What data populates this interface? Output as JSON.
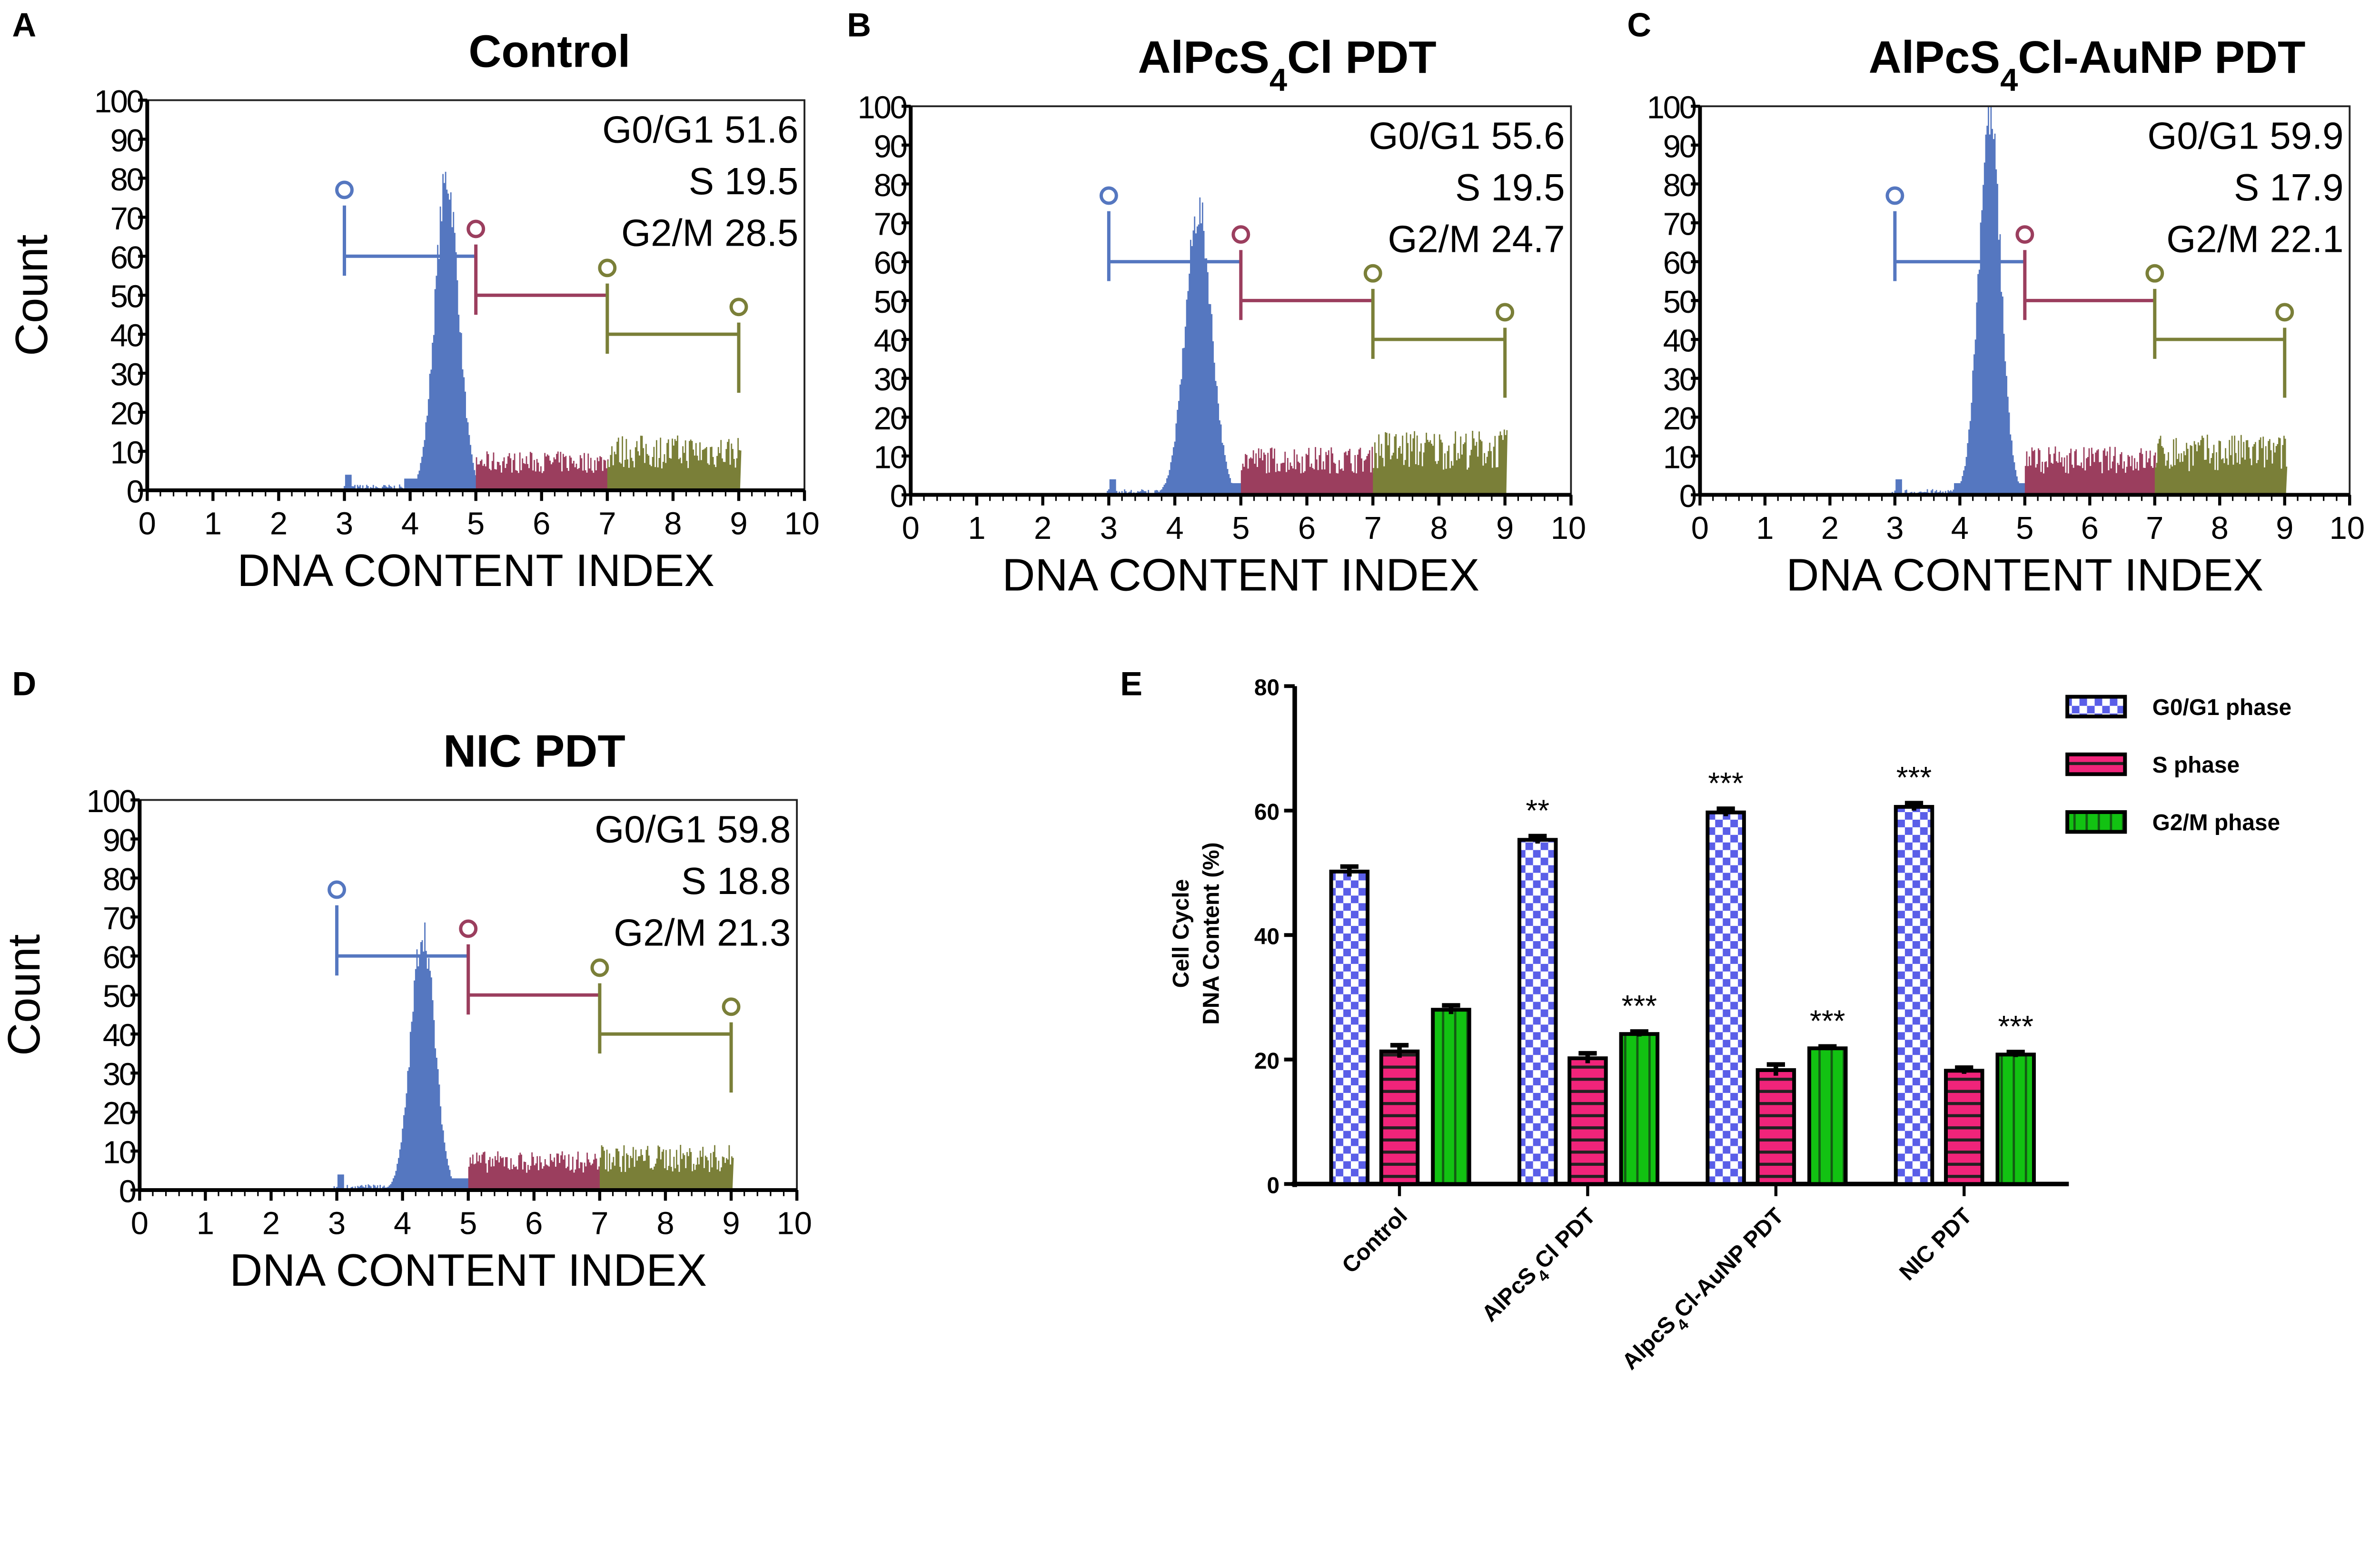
{
  "chart_data": [
    {
      "panel": "A",
      "type": "histogram",
      "title": {
        "pre": "Control",
        "sub": "",
        "post": ""
      },
      "xlabel": "DNA CONTENT INDEX",
      "ylabel": "Count",
      "xlim": [
        0,
        10
      ],
      "ylim": [
        0,
        100
      ],
      "xticks": [
        "0",
        "1",
        "2",
        "3",
        "4",
        "5",
        "6",
        "7",
        "8",
        "9",
        "10"
      ],
      "yticks": [
        "0",
        "10",
        "20",
        "30",
        "40",
        "50",
        "60",
        "70",
        "80",
        "90",
        "100"
      ],
      "stats": [
        {
          "label": "G0/G1 51.6"
        },
        {
          "label": "S 19.5"
        },
        {
          "label": "G2/M 28.5"
        }
      ],
      "peak": {
        "center": 4.55,
        "height": 82,
        "sd": 0.18
      },
      "s_level": 8,
      "g2m_level": 11,
      "gates": [
        {
          "from": 3,
          "to": 5,
          "y": 60,
          "marker": 77
        },
        {
          "from": 5,
          "to": 7,
          "y": 50,
          "marker": 67
        },
        {
          "from": 7,
          "to": 9,
          "y": 40,
          "marker": 57,
          "end_marker": 47
        }
      ]
    },
    {
      "panel": "B",
      "type": "histogram",
      "title": {
        "pre": "AlPcS",
        "sub": "4",
        "post": "Cl PDT"
      },
      "xlabel": "DNA CONTENT INDEX",
      "ylabel": "",
      "xlim": [
        0,
        10
      ],
      "ylim": [
        0,
        100
      ],
      "xticks": [
        "0",
        "1",
        "2",
        "3",
        "4",
        "5",
        "6",
        "7",
        "8",
        "9",
        "10"
      ],
      "yticks": [
        "0",
        "10",
        "20",
        "30",
        "40",
        "50",
        "60",
        "70",
        "80",
        "90",
        "100"
      ],
      "stats": [
        {
          "label": "G0/G1 55.6"
        },
        {
          "label": "S 19.5"
        },
        {
          "label": "G2/M 24.7"
        }
      ],
      "peak": {
        "center": 4.35,
        "height": 75,
        "sd": 0.2
      },
      "s_level": 10,
      "g2m_level": 13,
      "gates": [
        {
          "from": 3,
          "to": 5,
          "y": 60,
          "marker": 77
        },
        {
          "from": 5,
          "to": 7,
          "y": 50,
          "marker": 67
        },
        {
          "from": 7,
          "to": 9,
          "y": 40,
          "marker": 57,
          "end_marker": 47
        }
      ]
    },
    {
      "panel": "C",
      "type": "histogram",
      "title": {
        "pre": "AlPcS",
        "sub": "4",
        "post": "Cl-AuNP PDT"
      },
      "xlabel": "DNA CONTENT INDEX",
      "ylabel": "",
      "xlim": [
        0,
        10
      ],
      "ylim": [
        0,
        100
      ],
      "xticks": [
        "0",
        "1",
        "2",
        "3",
        "4",
        "5",
        "6",
        "7",
        "8",
        "9",
        "10"
      ],
      "yticks": [
        "0",
        "10",
        "20",
        "30",
        "40",
        "50",
        "60",
        "70",
        "80",
        "90",
        "100"
      ],
      "stats": [
        {
          "label": "G0/G1 59.9"
        },
        {
          "label": "S 17.9"
        },
        {
          "label": "G2/M 22.1"
        }
      ],
      "peak": {
        "center": 4.45,
        "height": 100,
        "sd": 0.17
      },
      "s_level": 10,
      "g2m_level": 12,
      "gates": [
        {
          "from": 3,
          "to": 5,
          "y": 60,
          "marker": 77
        },
        {
          "from": 5,
          "to": 7,
          "y": 50,
          "marker": 67
        },
        {
          "from": 7,
          "to": 9,
          "y": 40,
          "marker": 57,
          "end_marker": 47
        }
      ]
    },
    {
      "panel": "D",
      "type": "histogram",
      "title": {
        "pre": "NIC PDT",
        "sub": "",
        "post": ""
      },
      "xlabel": "DNA CONTENT INDEX",
      "ylabel": "Count",
      "xlim": [
        0,
        10
      ],
      "ylim": [
        0,
        100
      ],
      "xticks": [
        "0",
        "1",
        "2",
        "3",
        "4",
        "5",
        "6",
        "7",
        "8",
        "9",
        "10"
      ],
      "yticks": [
        "0",
        "10",
        "20",
        "30",
        "40",
        "50",
        "60",
        "70",
        "80",
        "90",
        "100"
      ],
      "stats": [
        {
          "label": "G0/G1 59.8"
        },
        {
          "label": "S 18.8"
        },
        {
          "label": "G2/M 21.3"
        }
      ],
      "peak": {
        "center": 4.3,
        "height": 68,
        "sd": 0.18
      },
      "s_level": 8,
      "g2m_level": 9,
      "gates": [
        {
          "from": 3,
          "to": 5,
          "y": 60,
          "marker": 77
        },
        {
          "from": 5,
          "to": 7,
          "y": 50,
          "marker": 67
        },
        {
          "from": 7,
          "to": 9,
          "y": 40,
          "marker": 57,
          "end_marker": 47
        }
      ]
    },
    {
      "panel": "E",
      "type": "bar",
      "ylabel_line1": "Cell Cycle",
      "ylabel_line2": "DNA Content (%)",
      "ylim": [
        0,
        80
      ],
      "yticks": [
        "0",
        "20",
        "40",
        "60",
        "80"
      ],
      "categories": [
        {
          "pre": "Control",
          "sub": "",
          "post": ""
        },
        {
          "pre": "AlPcS",
          "sub": "4",
          "post": "Cl PDT"
        },
        {
          "pre": "AlpcS",
          "sub": "4",
          "post": "Cl-AuNP PDT"
        },
        {
          "pre": "NIC PDT",
          "sub": "",
          "post": ""
        }
      ],
      "series": [
        {
          "name": "G0/G1 phase",
          "values": [
            50.2,
            55.3,
            59.7,
            60.6
          ],
          "errors": [
            0.8,
            0.6,
            0.6,
            0.6
          ],
          "sig": [
            "",
            "**",
            "***",
            "***"
          ]
        },
        {
          "name": "S phase",
          "values": [
            21.3,
            20.2,
            18.3,
            18.2
          ],
          "errors": [
            1.0,
            0.8,
            0.9,
            0.5
          ],
          "sig": [
            "",
            "",
            "",
            ""
          ]
        },
        {
          "name": "G2/M phase",
          "values": [
            28.0,
            24.1,
            21.8,
            20.8
          ],
          "errors": [
            0.7,
            0.4,
            0.3,
            0.4
          ],
          "sig": [
            "",
            "***",
            "***",
            "***"
          ]
        }
      ],
      "legend": "top-right"
    }
  ],
  "panel_labels": [
    "A",
    "B",
    "C",
    "D",
    "E"
  ],
  "colors": {
    "g0g1": "#5577c0",
    "s": "#9b3e5e",
    "g2m": "#7a7f38",
    "bar_g0": "#5a5ee8",
    "bar_s": "#f0247a",
    "bar_g2": "#12c212"
  }
}
